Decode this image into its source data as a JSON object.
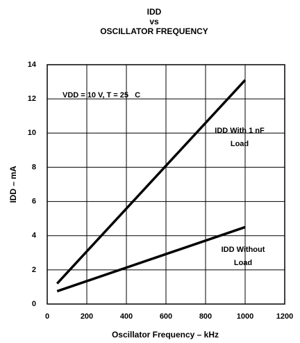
{
  "chart_data": {
    "type": "line",
    "title": [
      "IDD",
      "vs",
      "OSCILLATOR FREQUENCY"
    ],
    "x_label": "Oscillator Frequency – kHz",
    "y_label": "IDD – mA",
    "series": [
      {
        "color": "#000000",
        "x": [
          50,
          1000
        ],
        "values": [
          1.2,
          13.1
        ]
      },
      {
        "color": "#000000",
        "x": [
          50,
          1000
        ],
        "values": [
          0.75,
          4.5
        ]
      }
    ],
    "annotations": [
      [
        "VDD = 10 V, T = 25   C"
      ],
      [
        "IDD With 1 nF",
        "Load"
      ],
      [
        "IDD Without",
        "Load"
      ]
    ],
    "xlim": [
      0,
      1200
    ],
    "xticks": [
      0,
      200,
      400,
      600,
      800,
      1000,
      1200
    ],
    "ylim": [
      0,
      14
    ],
    "yticks": [
      0,
      2,
      4,
      6,
      8,
      10,
      12,
      14
    ],
    "grid": true
  }
}
